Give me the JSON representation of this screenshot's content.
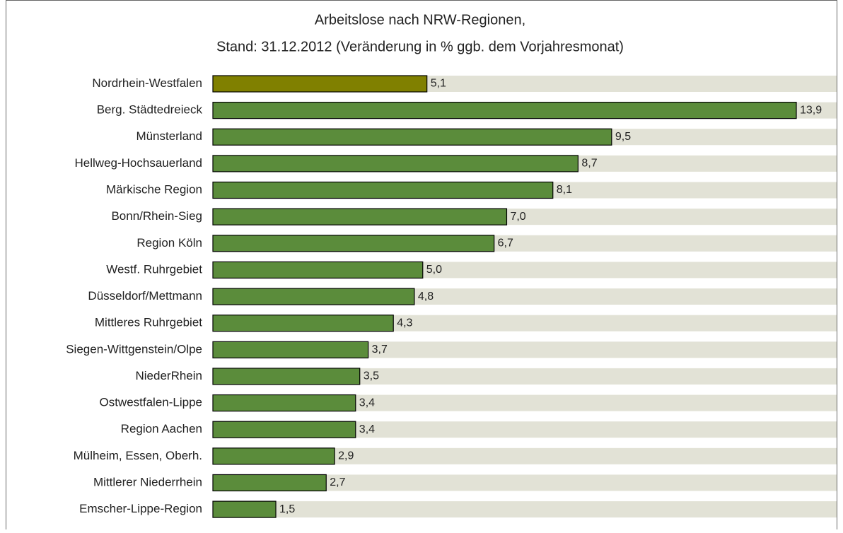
{
  "chart_data": {
    "type": "bar",
    "orientation": "horizontal",
    "title": "Arbeitslose nach NRW-Regionen,",
    "subtitle": "Stand: 31.12.2012 (Veränderung in % ggb. dem Vorjahresmonat)",
    "categories": [
      "Nordrhein-Westfalen",
      "Berg. Städtedreieck",
      "Münsterland",
      "Hellweg-Hochsauerland",
      "Märkische Region",
      "Bonn/Rhein-Sieg",
      "Region Köln",
      "Westf. Ruhrgebiet",
      "Düsseldorf/Mettmann",
      "Mittleres Ruhrgebiet",
      "Siegen-Wittgenstein/Olpe",
      "NiederRhein",
      "Ostwestfalen-Lippe",
      "Region Aachen",
      "Mülheim, Essen, Oberh.",
      "Mittlerer Niederrhein",
      "Emscher-Lippe-Region"
    ],
    "values": [
      5.1,
      13.9,
      9.5,
      8.7,
      8.1,
      7.0,
      6.7,
      5.0,
      4.8,
      4.3,
      3.7,
      3.5,
      3.4,
      3.4,
      2.9,
      2.7,
      1.5
    ],
    "value_labels": [
      "5,1",
      "13,9",
      "9,5",
      "8,7",
      "8,1",
      "7,0",
      "6,7",
      "5,0",
      "4,8",
      "4,3",
      "3,7",
      "3,5",
      "3,4",
      "3,4",
      "2,9",
      "2,7",
      "1,5"
    ],
    "colors": [
      "#808000",
      "#5b8c3b",
      "#5b8c3b",
      "#5b8c3b",
      "#5b8c3b",
      "#5b8c3b",
      "#5b8c3b",
      "#5b8c3b",
      "#5b8c3b",
      "#5b8c3b",
      "#5b8c3b",
      "#5b8c3b",
      "#5b8c3b",
      "#5b8c3b",
      "#5b8c3b",
      "#5b8c3b",
      "#5b8c3b"
    ],
    "band_color": "#e2e2d6"
  }
}
